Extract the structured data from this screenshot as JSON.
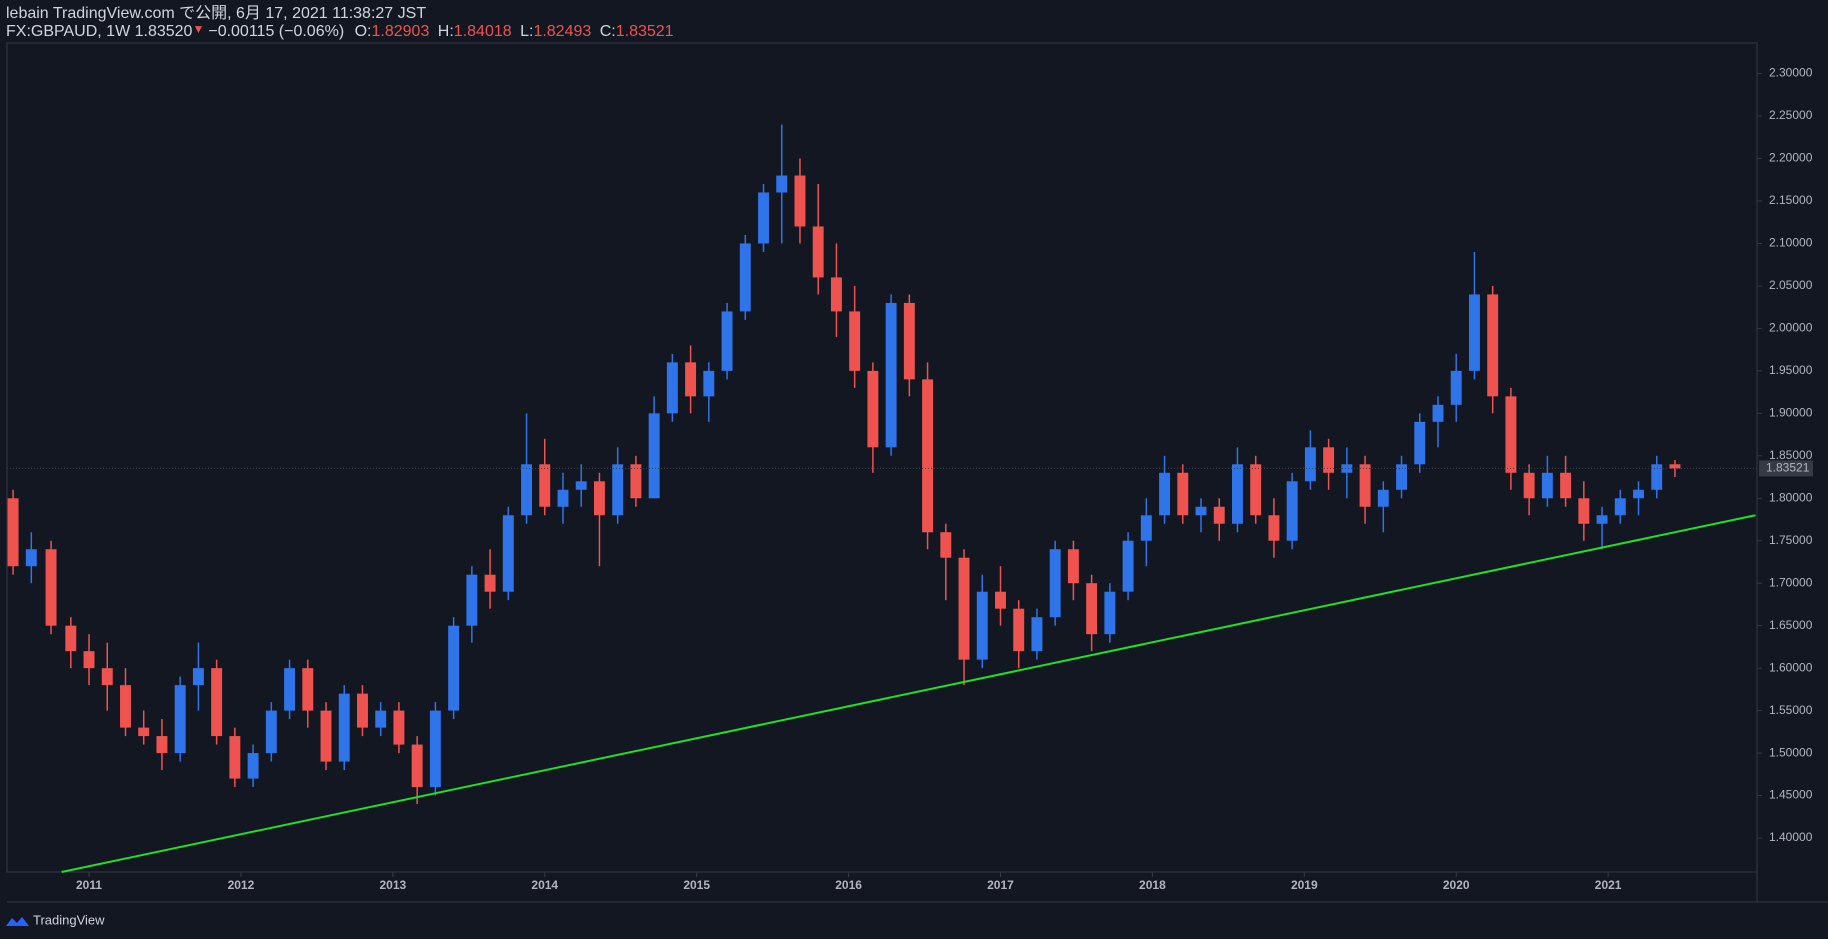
{
  "header": {
    "title": "lebain TradingView.com で公開, 6月 17, 2021 11:38:27 JST",
    "symbol": "FX:GBPAUD, 1W 1.83520",
    "arrow": "▼",
    "change": "−0.00115 (−0.06%)",
    "o_label": "O:",
    "o": "1.82903",
    "h_label": "H:",
    "h": "1.84018",
    "l_label": "L:",
    "l": "1.82493",
    "c_label": "C:",
    "c": "1.83521"
  },
  "footer": {
    "brand": "TradingView"
  },
  "chart_data": {
    "type": "candlestick",
    "up_color": "#2f74e8",
    "down_color": "#ef5350",
    "line_color": "#22e022",
    "xlim": [
      2010.46,
      2021.98
    ],
    "ylim": [
      1.36,
      2.336
    ],
    "xticks": [
      2011,
      2012,
      2013,
      2014,
      2015,
      2016,
      2017,
      2018,
      2019,
      2020,
      2021
    ],
    "yticks": [
      {
        "value": 1.4,
        "label": "1.40000"
      },
      {
        "value": 1.45,
        "label": "1.45000"
      },
      {
        "value": 1.5,
        "label": "1.50000"
      },
      {
        "value": 1.55,
        "label": "1.55000"
      },
      {
        "value": 1.6,
        "label": "1.60000"
      },
      {
        "value": 1.65,
        "label": "1.65000"
      },
      {
        "value": 1.7,
        "label": "1.70000"
      },
      {
        "value": 1.75,
        "label": "1.75000"
      },
      {
        "value": 1.8,
        "label": "1.80000"
      },
      {
        "value": 1.85,
        "label": "1.85000"
      },
      {
        "value": 1.9,
        "label": "1.90000"
      },
      {
        "value": 1.95,
        "label": "1.95000"
      },
      {
        "value": 2.0,
        "label": "2.00000"
      },
      {
        "value": 2.05,
        "label": "2.05000"
      },
      {
        "value": 2.1,
        "label": "2.10000"
      },
      {
        "value": 2.15,
        "label": "2.15000"
      },
      {
        "value": 2.2,
        "label": "2.20000"
      },
      {
        "value": 2.25,
        "label": "2.25000"
      },
      {
        "value": 2.3,
        "label": "2.30000"
      }
    ],
    "last_price": 1.83521,
    "trendline": {
      "x": [
        2010.82,
        2021.97
      ],
      "y": [
        1.36,
        1.78
      ]
    },
    "candles": [
      [
        2010.5,
        1.8,
        1.81,
        1.71,
        1.72
      ],
      [
        2010.62,
        1.72,
        1.76,
        1.7,
        1.74
      ],
      [
        2010.75,
        1.74,
        1.75,
        1.64,
        1.65
      ],
      [
        2010.88,
        1.65,
        1.66,
        1.6,
        1.62
      ],
      [
        2011.0,
        1.62,
        1.64,
        1.58,
        1.6
      ],
      [
        2011.12,
        1.6,
        1.63,
        1.55,
        1.58
      ],
      [
        2011.24,
        1.58,
        1.6,
        1.52,
        1.53
      ],
      [
        2011.36,
        1.53,
        1.55,
        1.51,
        1.52
      ],
      [
        2011.48,
        1.52,
        1.54,
        1.48,
        1.5
      ],
      [
        2011.6,
        1.5,
        1.59,
        1.49,
        1.58
      ],
      [
        2011.72,
        1.58,
        1.63,
        1.55,
        1.6
      ],
      [
        2011.84,
        1.6,
        1.61,
        1.51,
        1.52
      ],
      [
        2011.96,
        1.52,
        1.53,
        1.46,
        1.47
      ],
      [
        2012.08,
        1.47,
        1.51,
        1.46,
        1.5
      ],
      [
        2012.2,
        1.5,
        1.56,
        1.49,
        1.55
      ],
      [
        2012.32,
        1.55,
        1.61,
        1.54,
        1.6
      ],
      [
        2012.44,
        1.6,
        1.61,
        1.53,
        1.55
      ],
      [
        2012.56,
        1.55,
        1.56,
        1.48,
        1.49
      ],
      [
        2012.68,
        1.49,
        1.58,
        1.48,
        1.57
      ],
      [
        2012.8,
        1.57,
        1.58,
        1.52,
        1.53
      ],
      [
        2012.92,
        1.53,
        1.56,
        1.52,
        1.55
      ],
      [
        2013.04,
        1.55,
        1.56,
        1.5,
        1.51
      ],
      [
        2013.16,
        1.51,
        1.52,
        1.44,
        1.46
      ],
      [
        2013.28,
        1.46,
        1.56,
        1.45,
        1.55
      ],
      [
        2013.4,
        1.55,
        1.66,
        1.54,
        1.65
      ],
      [
        2013.52,
        1.65,
        1.72,
        1.63,
        1.71
      ],
      [
        2013.64,
        1.71,
        1.74,
        1.67,
        1.69
      ],
      [
        2013.76,
        1.69,
        1.79,
        1.68,
        1.78
      ],
      [
        2013.88,
        1.78,
        1.9,
        1.77,
        1.84
      ],
      [
        2014.0,
        1.84,
        1.87,
        1.78,
        1.79
      ],
      [
        2014.12,
        1.79,
        1.83,
        1.77,
        1.81
      ],
      [
        2014.24,
        1.81,
        1.84,
        1.79,
        1.82
      ],
      [
        2014.36,
        1.82,
        1.83,
        1.72,
        1.78
      ],
      [
        2014.48,
        1.78,
        1.86,
        1.77,
        1.84
      ],
      [
        2014.6,
        1.84,
        1.85,
        1.79,
        1.8
      ],
      [
        2014.72,
        1.8,
        1.92,
        1.8,
        1.9
      ],
      [
        2014.84,
        1.9,
        1.97,
        1.89,
        1.96
      ],
      [
        2014.96,
        1.96,
        1.98,
        1.9,
        1.92
      ],
      [
        2015.08,
        1.92,
        1.96,
        1.89,
        1.95
      ],
      [
        2015.2,
        1.95,
        2.03,
        1.94,
        2.02
      ],
      [
        2015.32,
        2.02,
        2.11,
        2.01,
        2.1
      ],
      [
        2015.44,
        2.1,
        2.17,
        2.09,
        2.16
      ],
      [
        2015.56,
        2.16,
        2.24,
        2.1,
        2.18
      ],
      [
        2015.68,
        2.18,
        2.2,
        2.1,
        2.12
      ],
      [
        2015.8,
        2.12,
        2.17,
        2.04,
        2.06
      ],
      [
        2015.92,
        2.06,
        2.1,
        1.99,
        2.02
      ],
      [
        2016.04,
        2.02,
        2.05,
        1.93,
        1.95
      ],
      [
        2016.16,
        1.95,
        1.96,
        1.83,
        1.86
      ],
      [
        2016.28,
        1.86,
        2.04,
        1.85,
        2.03
      ],
      [
        2016.4,
        2.03,
        2.04,
        1.92,
        1.94
      ],
      [
        2016.52,
        1.94,
        1.96,
        1.74,
        1.76
      ],
      [
        2016.64,
        1.76,
        1.77,
        1.68,
        1.73
      ],
      [
        2016.76,
        1.73,
        1.74,
        1.58,
        1.61
      ],
      [
        2016.88,
        1.61,
        1.71,
        1.6,
        1.69
      ],
      [
        2017.0,
        1.69,
        1.72,
        1.65,
        1.67
      ],
      [
        2017.12,
        1.67,
        1.68,
        1.6,
        1.62
      ],
      [
        2017.24,
        1.62,
        1.67,
        1.61,
        1.66
      ],
      [
        2017.36,
        1.66,
        1.75,
        1.65,
        1.74
      ],
      [
        2017.48,
        1.74,
        1.75,
        1.68,
        1.7
      ],
      [
        2017.6,
        1.7,
        1.71,
        1.62,
        1.64
      ],
      [
        2017.72,
        1.64,
        1.7,
        1.63,
        1.69
      ],
      [
        2017.84,
        1.69,
        1.76,
        1.68,
        1.75
      ],
      [
        2017.96,
        1.75,
        1.8,
        1.72,
        1.78
      ],
      [
        2018.08,
        1.78,
        1.85,
        1.77,
        1.83
      ],
      [
        2018.2,
        1.83,
        1.84,
        1.77,
        1.78
      ],
      [
        2018.32,
        1.78,
        1.8,
        1.76,
        1.79
      ],
      [
        2018.44,
        1.79,
        1.8,
        1.75,
        1.77
      ],
      [
        2018.56,
        1.77,
        1.86,
        1.76,
        1.84
      ],
      [
        2018.68,
        1.84,
        1.85,
        1.77,
        1.78
      ],
      [
        2018.8,
        1.78,
        1.8,
        1.73,
        1.75
      ],
      [
        2018.92,
        1.75,
        1.83,
        1.74,
        1.82
      ],
      [
        2019.04,
        1.82,
        1.88,
        1.81,
        1.86
      ],
      [
        2019.16,
        1.86,
        1.87,
        1.81,
        1.83
      ],
      [
        2019.28,
        1.83,
        1.86,
        1.8,
        1.84
      ],
      [
        2019.4,
        1.84,
        1.85,
        1.77,
        1.79
      ],
      [
        2019.52,
        1.79,
        1.82,
        1.76,
        1.81
      ],
      [
        2019.64,
        1.81,
        1.85,
        1.8,
        1.84
      ],
      [
        2019.76,
        1.84,
        1.9,
        1.83,
        1.89
      ],
      [
        2019.88,
        1.89,
        1.92,
        1.86,
        1.91
      ],
      [
        2020.0,
        1.91,
        1.97,
        1.89,
        1.95
      ],
      [
        2020.12,
        1.95,
        2.09,
        1.94,
        2.04
      ],
      [
        2020.24,
        2.04,
        2.05,
        1.9,
        1.92
      ],
      [
        2020.36,
        1.92,
        1.93,
        1.81,
        1.83
      ],
      [
        2020.48,
        1.83,
        1.84,
        1.78,
        1.8
      ],
      [
        2020.6,
        1.8,
        1.85,
        1.79,
        1.83
      ],
      [
        2020.72,
        1.83,
        1.85,
        1.79,
        1.8
      ],
      [
        2020.84,
        1.8,
        1.82,
        1.75,
        1.77
      ],
      [
        2020.96,
        1.77,
        1.79,
        1.74,
        1.78
      ],
      [
        2021.08,
        1.78,
        1.81,
        1.77,
        1.8
      ],
      [
        2021.2,
        1.8,
        1.82,
        1.78,
        1.81
      ],
      [
        2021.32,
        1.81,
        1.85,
        1.8,
        1.84
      ],
      [
        2021.44,
        1.84,
        1.845,
        1.825,
        1.835
      ]
    ]
  }
}
